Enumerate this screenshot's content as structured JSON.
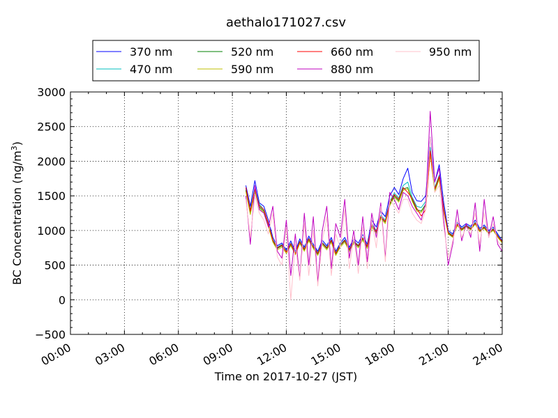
{
  "chart_data": {
    "type": "line",
    "title": "aethalo171027.csv",
    "xlabel": "Time on 2017-10-27 (JST)",
    "ylabel_main": "BC Concentration (ng/m",
    "ylabel_sup": "3",
    "ylabel_close": ")",
    "xlim": [
      0,
      24
    ],
    "ylim": [
      -500,
      3000
    ],
    "x_ticks": [
      0,
      3,
      6,
      9,
      12,
      15,
      18,
      21,
      24
    ],
    "x_tick_labels": [
      "00:00",
      "03:00",
      "06:00",
      "09:00",
      "12:00",
      "15:00",
      "18:00",
      "21:00",
      "24:00"
    ],
    "y_ticks": [
      -500,
      0,
      500,
      1000,
      1500,
      2000,
      2500,
      3000
    ],
    "y_tick_labels": [
      "−500",
      "0",
      "500",
      "1000",
      "1500",
      "2000",
      "2500",
      "3000"
    ],
    "grid": true,
    "legend_position": "top",
    "legend": [
      "370 nm",
      "470 nm",
      "520 nm",
      "590 nm",
      "660 nm",
      "880 nm",
      "950 nm"
    ],
    "series": [
      {
        "name": "370 nm",
        "color": "#0000ff",
        "x": [
          9.75,
          10.0,
          10.25,
          10.5,
          10.75,
          11.0,
          11.25,
          11.5,
          11.75,
          12.0,
          12.25,
          12.5,
          12.75,
          13.0,
          13.25,
          13.5,
          13.75,
          14.0,
          14.25,
          14.5,
          14.75,
          15.0,
          15.25,
          15.5,
          15.75,
          16.0,
          16.25,
          16.5,
          16.75,
          17.0,
          17.25,
          17.5,
          17.75,
          18.0,
          18.25,
          18.5,
          18.75,
          19.0,
          19.25,
          19.5,
          19.75,
          20.0,
          20.25,
          20.5,
          20.75,
          21.0,
          21.25,
          21.5,
          21.75,
          22.0,
          22.25,
          22.5,
          22.75,
          23.0,
          23.25,
          23.5,
          23.75,
          24.0
        ],
        "y": [
          1650,
          1350,
          1720,
          1400,
          1350,
          1150,
          900,
          780,
          820,
          720,
          850,
          700,
          880,
          760,
          920,
          800,
          700,
          860,
          780,
          900,
          700,
          820,
          900,
          760,
          880,
          820,
          940,
          800,
          1150,
          1050,
          1280,
          1200,
          1500,
          1620,
          1520,
          1750,
          1900,
          1550,
          1430,
          1420,
          1500,
          2350,
          1700,
          1950,
          1400,
          1000,
          950,
          1120,
          1050,
          1100,
          1060,
          1150,
          1030,
          1080,
          1000,
          1050,
          950,
          850
        ]
      },
      {
        "name": "470 nm",
        "color": "#00bfbf",
        "x": [
          9.75,
          10.0,
          10.25,
          10.5,
          10.75,
          11.0,
          11.25,
          11.5,
          11.75,
          12.0,
          12.25,
          12.5,
          12.75,
          13.0,
          13.25,
          13.5,
          13.75,
          14.0,
          14.25,
          14.5,
          14.75,
          15.0,
          15.25,
          15.5,
          15.75,
          16.0,
          16.25,
          16.5,
          16.75,
          17.0,
          17.25,
          17.5,
          17.75,
          18.0,
          18.25,
          18.5,
          18.75,
          19.0,
          19.25,
          19.5,
          19.75,
          20.0,
          20.25,
          20.5,
          20.75,
          21.0,
          21.25,
          21.5,
          21.75,
          22.0,
          22.25,
          22.5,
          22.75,
          23.0,
          23.25,
          23.5,
          23.75,
          24.0
        ],
        "y": [
          1600,
          1300,
          1620,
          1380,
          1300,
          1100,
          870,
          760,
          800,
          700,
          820,
          680,
          850,
          740,
          890,
          780,
          680,
          830,
          760,
          870,
          680,
          800,
          870,
          740,
          850,
          790,
          900,
          780,
          1100,
          1000,
          1220,
          1150,
          1420,
          1540,
          1470,
          1650,
          1700,
          1480,
          1350,
          1330,
          1420,
          2200,
          1620,
          1800,
          1320,
          980,
          930,
          1100,
          1030,
          1080,
          1040,
          1120,
          1010,
          1060,
          980,
          1030,
          930,
          840
        ]
      },
      {
        "name": "520 nm",
        "color": "#008000",
        "x": [
          9.75,
          10.0,
          10.25,
          10.5,
          10.75,
          11.0,
          11.25,
          11.5,
          11.75,
          12.0,
          12.25,
          12.5,
          12.75,
          13.0,
          13.25,
          13.5,
          13.75,
          14.0,
          14.25,
          14.5,
          14.75,
          15.0,
          15.25,
          15.5,
          15.75,
          16.0,
          16.25,
          16.5,
          16.75,
          17.0,
          17.25,
          17.5,
          17.75,
          18.0,
          18.25,
          18.5,
          18.75,
          19.0,
          19.25,
          19.5,
          19.75,
          20.0,
          20.25,
          20.5,
          20.75,
          21.0,
          21.25,
          21.5,
          21.75,
          22.0,
          22.25,
          22.5,
          22.75,
          23.0,
          23.25,
          23.5,
          23.75,
          24.0
        ],
        "y": [
          1580,
          1250,
          1580,
          1340,
          1280,
          1080,
          850,
          740,
          780,
          690,
          800,
          670,
          830,
          720,
          870,
          760,
          660,
          810,
          740,
          850,
          660,
          780,
          850,
          720,
          830,
          770,
          880,
          760,
          1060,
          980,
          1190,
          1120,
          1380,
          1500,
          1430,
          1600,
          1620,
          1440,
          1300,
          1280,
          1380,
          2120,
          1580,
          1760,
          1290,
          960,
          910,
          1080,
          1010,
          1060,
          1020,
          1100,
          990,
          1040,
          960,
          1010,
          910,
          830
        ]
      },
      {
        "name": "590 nm",
        "color": "#bfbf00",
        "x": [
          9.75,
          10.0,
          10.25,
          10.5,
          10.75,
          11.0,
          11.25,
          11.5,
          11.75,
          12.0,
          12.25,
          12.5,
          12.75,
          13.0,
          13.25,
          13.5,
          13.75,
          14.0,
          14.25,
          14.5,
          14.75,
          15.0,
          15.25,
          15.5,
          15.75,
          16.0,
          16.25,
          16.5,
          16.75,
          17.0,
          17.25,
          17.5,
          17.75,
          18.0,
          18.25,
          18.5,
          18.75,
          19.0,
          19.25,
          19.5,
          19.75,
          20.0,
          20.25,
          20.5,
          20.75,
          21.0,
          21.25,
          21.5,
          21.75,
          22.0,
          22.25,
          22.5,
          22.75,
          23.0,
          23.25,
          23.5,
          23.75,
          24.0
        ],
        "y": [
          1560,
          1230,
          1560,
          1320,
          1260,
          1060,
          830,
          720,
          760,
          670,
          780,
          650,
          810,
          700,
          850,
          740,
          640,
          790,
          720,
          830,
          640,
          760,
          830,
          700,
          810,
          750,
          860,
          740,
          1040,
          960,
          1170,
          1100,
          1360,
          1480,
          1410,
          1580,
          1600,
          1420,
          1280,
          1260,
          1360,
          2100,
          1560,
          1740,
          1270,
          950,
          900,
          1070,
          1000,
          1050,
          1010,
          1090,
          980,
          1030,
          950,
          1000,
          900,
          820
        ]
      },
      {
        "name": "660 nm",
        "color": "#ff0000",
        "x": [
          9.75,
          10.0,
          10.25,
          10.5,
          10.75,
          11.0,
          11.25,
          11.5,
          11.75,
          12.0,
          12.25,
          12.5,
          12.75,
          13.0,
          13.25,
          13.5,
          13.75,
          14.0,
          14.25,
          14.5,
          14.75,
          15.0,
          15.25,
          15.5,
          15.75,
          16.0,
          16.25,
          16.5,
          16.75,
          17.0,
          17.25,
          17.5,
          17.75,
          18.0,
          18.25,
          18.5,
          18.75,
          19.0,
          19.25,
          19.5,
          19.75,
          20.0,
          20.25,
          20.5,
          20.75,
          21.0,
          21.25,
          21.5,
          21.75,
          22.0,
          22.25,
          22.5,
          22.75,
          23.0,
          23.25,
          23.5,
          23.75,
          24.0
        ],
        "y": [
          1620,
          1280,
          1600,
          1360,
          1300,
          1100,
          860,
          750,
          790,
          690,
          810,
          670,
          840,
          730,
          880,
          770,
          670,
          820,
          750,
          860,
          670,
          790,
          860,
          730,
          840,
          780,
          890,
          770,
          1080,
          990,
          1200,
          1130,
          1400,
          1520,
          1450,
          1620,
          1550,
          1460,
          1320,
          1210,
          1300,
          2150,
          1600,
          1780,
          1310,
          970,
          920,
          1090,
          1020,
          1070,
          1030,
          1110,
          1000,
          1050,
          970,
          1020,
          920,
          840
        ]
      },
      {
        "name": "880 nm",
        "color": "#bf00bf",
        "x": [
          9.75,
          10.0,
          10.25,
          10.5,
          10.75,
          11.0,
          11.25,
          11.5,
          11.75,
          12.0,
          12.25,
          12.5,
          12.75,
          13.0,
          13.25,
          13.5,
          13.75,
          14.0,
          14.25,
          14.5,
          14.75,
          15.0,
          15.25,
          15.5,
          15.75,
          16.0,
          16.25,
          16.5,
          16.75,
          17.0,
          17.25,
          17.5,
          17.75,
          18.0,
          18.25,
          18.5,
          18.75,
          19.0,
          19.25,
          19.5,
          19.75,
          20.0,
          20.25,
          20.5,
          20.75,
          21.0,
          21.25,
          21.5,
          21.75,
          22.0,
          22.25,
          22.5,
          22.75,
          23.0,
          23.25,
          23.5,
          23.75,
          24.0
        ],
        "y": [
          1500,
          800,
          1650,
          1300,
          1250,
          1050,
          1350,
          700,
          600,
          1150,
          350,
          950,
          300,
          1250,
          500,
          1200,
          250,
          1000,
          1350,
          450,
          1100,
          900,
          1450,
          600,
          1000,
          500,
          1200,
          550,
          1250,
          900,
          1400,
          600,
          1550,
          1450,
          1300,
          1550,
          1500,
          1350,
          1250,
          1150,
          1400,
          2720,
          1700,
          1900,
          1150,
          500,
          800,
          1300,
          850,
          1100,
          900,
          1400,
          700,
          1450,
          900,
          1200,
          800,
          700
        ]
      },
      {
        "name": "950 nm",
        "color": "#ffc0cb",
        "x": [
          9.75,
          10.0,
          10.25,
          10.5,
          10.75,
          11.0,
          11.25,
          11.5,
          11.75,
          12.0,
          12.25,
          12.5,
          12.75,
          13.0,
          13.25,
          13.5,
          13.75,
          14.0,
          14.25,
          14.5,
          14.75,
          15.0,
          15.25,
          15.5,
          15.75,
          16.0,
          16.25,
          16.5,
          16.75,
          17.0,
          17.25,
          17.5,
          17.75,
          18.0,
          18.25,
          18.5,
          18.75,
          19.0,
          19.25,
          19.5,
          19.75,
          20.0,
          20.25,
          20.5,
          20.75,
          21.0,
          21.25,
          21.5,
          21.75,
          22.0,
          22.25,
          22.5,
          22.75,
          23.0,
          23.25,
          23.5,
          23.75,
          24.0
        ],
        "y": [
          1450,
          900,
          1500,
          1250,
          1150,
          950,
          1250,
          620,
          500,
          1050,
          0,
          800,
          280,
          1100,
          350,
          1000,
          200,
          850,
          1200,
          350,
          950,
          750,
          1300,
          450,
          900,
          380,
          1050,
          450,
          1150,
          750,
          1350,
          550,
          1450,
          1350,
          1250,
          1450,
          1450,
          1250,
          1150,
          1100,
          1300,
          2350,
          1550,
          1650,
          1050,
          600,
          850,
          1150,
          900,
          1050,
          950,
          1250,
          800,
          1250,
          900,
          1100,
          850,
          750
        ]
      }
    ]
  }
}
